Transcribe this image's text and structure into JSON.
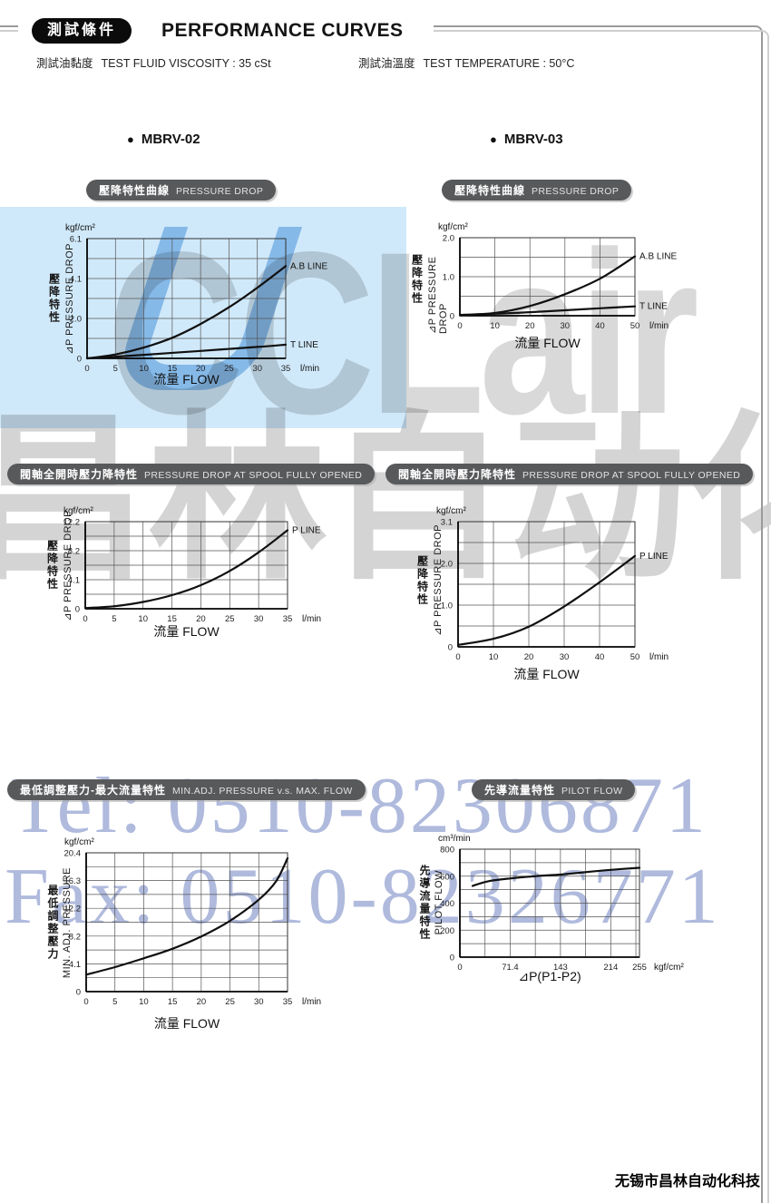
{
  "page": {
    "header": {
      "badge": "測試條件",
      "title": "PERFORMANCE CURVES"
    },
    "conditions": [
      {
        "zh": "測試油黏度",
        "en": "TEST FLUID VISCOSITY : 35 cSt"
      },
      {
        "zh": "測試油溫度",
        "en": "TEST TEMPERATURE : 50°C"
      }
    ],
    "models": [
      {
        "bullet": "●",
        "label": "MBRV-02"
      },
      {
        "bullet": "●",
        "label": "MBRV-03"
      }
    ],
    "watermarks": {
      "brand": "CCLair",
      "brand_zh": "昌林自动化",
      "tel": "Tel: 0510-82306871",
      "fax": "Fax: 0510-82326771"
    },
    "footer": "无锡市昌林自动化科技",
    "colors": {
      "pill_bg": "#58595b",
      "header_pill_bg": "#0b0b0b",
      "watermark_blue": "#7e90c8",
      "watermark_gray": "#bdbdbd",
      "lightblue_box": "#d0e9fa",
      "curve": "#101010"
    }
  },
  "chart_data": [
    {
      "type": "line",
      "model": "MBRV-02",
      "badge_zh": "壓降特性曲線",
      "badge_en": "PRESSURE DROP",
      "y_unit": "kgf/cm²",
      "x_unit": "l/min",
      "y_label_zh": "壓降特性",
      "y_label_en": "⊿P PRESSURE DROP",
      "x_title": "流量 FLOW",
      "x_range": [
        0,
        35
      ],
      "y_range": [
        0,
        6.1
      ],
      "x_gridlines": [
        0,
        5,
        10,
        15,
        20,
        25,
        30,
        35
      ],
      "y_gridlines": [
        0,
        1.017,
        2.033,
        3.05,
        4.067,
        5.083,
        6.1
      ],
      "x_ticks": [
        {
          "v": 0,
          "t": "0"
        },
        {
          "v": 5,
          "t": "5"
        },
        {
          "v": 10,
          "t": "10"
        },
        {
          "v": 15,
          "t": "15"
        },
        {
          "v": 20,
          "t": "20"
        },
        {
          "v": 25,
          "t": "25"
        },
        {
          "v": 30,
          "t": "30"
        },
        {
          "v": 35,
          "t": "35"
        }
      ],
      "y_ticks": [
        {
          "v": 0,
          "t": "0"
        },
        {
          "v": 2.033,
          "t": "2.0"
        },
        {
          "v": 4.067,
          "t": "4.1"
        },
        {
          "v": 6.1,
          "t": "6.1"
        }
      ],
      "series": [
        {
          "label": "A.B LINE",
          "points": [
            [
              0,
              0
            ],
            [
              5,
              0.2
            ],
            [
              10,
              0.55
            ],
            [
              15,
              1.05
            ],
            [
              20,
              1.75
            ],
            [
              25,
              2.6
            ],
            [
              30,
              3.6
            ],
            [
              35,
              4.7
            ]
          ]
        },
        {
          "label": "T LINE",
          "points": [
            [
              0,
              0
            ],
            [
              10,
              0.18
            ],
            [
              20,
              0.38
            ],
            [
              30,
              0.58
            ],
            [
              35,
              0.7
            ]
          ]
        }
      ]
    },
    {
      "type": "line",
      "model": "MBRV-03",
      "badge_zh": "壓降特性曲線",
      "badge_en": "PRESSURE DROP",
      "y_unit": "kgf/cm²",
      "x_unit": "l/min",
      "y_label_zh": "壓降特性",
      "y_label_en": "⊿P PRESSURE DROP",
      "x_title": "流量 FLOW",
      "x_range": [
        0,
        50
      ],
      "y_range": [
        0,
        2.0
      ],
      "x_gridlines": [
        0,
        10,
        20,
        30,
        40,
        50
      ],
      "y_gridlines": [
        0,
        0.5,
        1.0,
        1.5,
        2.0
      ],
      "x_ticks": [
        {
          "v": 0,
          "t": "0"
        },
        {
          "v": 10,
          "t": "10"
        },
        {
          "v": 20,
          "t": "20"
        },
        {
          "v": 30,
          "t": "30"
        },
        {
          "v": 40,
          "t": "40"
        },
        {
          "v": 50,
          "t": "50"
        }
      ],
      "y_ticks": [
        {
          "v": 0,
          "t": "0"
        },
        {
          "v": 1.0,
          "t": "1.0"
        },
        {
          "v": 2.0,
          "t": "2.0"
        }
      ],
      "series": [
        {
          "label": "A.B LINE",
          "points": [
            [
              0,
              0.02
            ],
            [
              10,
              0.07
            ],
            [
              20,
              0.25
            ],
            [
              30,
              0.55
            ],
            [
              40,
              0.95
            ],
            [
              50,
              1.52
            ]
          ]
        },
        {
          "label": "T LINE",
          "points": [
            [
              0,
              0.01
            ],
            [
              10,
              0.05
            ],
            [
              20,
              0.09
            ],
            [
              30,
              0.14
            ],
            [
              40,
              0.19
            ],
            [
              50,
              0.24
            ]
          ]
        }
      ]
    },
    {
      "type": "line",
      "model": "MBRV-02",
      "badge_zh": "閥軸全開時壓力降特性",
      "badge_en": "PRESSURE DROP  AT SPOOL FULLY OPENED",
      "y_unit": "kgf/cm²",
      "x_unit": "l/min",
      "y_label_zh": "壓降特性",
      "y_label_en": "⊿P PRESSURE DROP",
      "x_title": "流量 FLOW",
      "x_range": [
        0,
        35
      ],
      "y_range": [
        0,
        12.2
      ],
      "x_gridlines": [
        0,
        5,
        10,
        15,
        20,
        25,
        30,
        35
      ],
      "y_gridlines": [
        0,
        2.033,
        4.067,
        6.1,
        8.133,
        10.167,
        12.2
      ],
      "x_ticks": [
        {
          "v": 0,
          "t": "0"
        },
        {
          "v": 5,
          "t": "5"
        },
        {
          "v": 10,
          "t": "10"
        },
        {
          "v": 15,
          "t": "15"
        },
        {
          "v": 20,
          "t": "20"
        },
        {
          "v": 25,
          "t": "25"
        },
        {
          "v": 30,
          "t": "30"
        },
        {
          "v": 35,
          "t": "35"
        }
      ],
      "y_ticks": [
        {
          "v": 0,
          "t": "0"
        },
        {
          "v": 4.067,
          "t": "4.1"
        },
        {
          "v": 8.133,
          "t": "8.2"
        },
        {
          "v": 12.2,
          "t": "12.2"
        }
      ],
      "series": [
        {
          "label": "P LINE",
          "points": [
            [
              0,
              0.1
            ],
            [
              5,
              0.35
            ],
            [
              10,
              0.95
            ],
            [
              15,
              1.9
            ],
            [
              20,
              3.3
            ],
            [
              25,
              5.3
            ],
            [
              30,
              7.9
            ],
            [
              35,
              11.0
            ]
          ]
        }
      ]
    },
    {
      "type": "line",
      "model": "MBRV-03",
      "badge_zh": "閥軸全開時壓力降特性",
      "badge_en": "PRESSURE DROP  AT SPOOL FULLY OPENED",
      "y_unit": "kgf/cm²",
      "x_unit": "l/min",
      "y_label_zh": "壓降特性",
      "y_label_en": "⊿P PRESSURE DROP",
      "x_title": "流量 FLOW",
      "x_range": [
        0,
        50
      ],
      "y_range": [
        0,
        3.1
      ],
      "x_gridlines": [
        0,
        10,
        20,
        30,
        40,
        50
      ],
      "y_gridlines": [
        0,
        0.517,
        1.033,
        1.55,
        2.067,
        2.583,
        3.1
      ],
      "x_ticks": [
        {
          "v": 0,
          "t": "0"
        },
        {
          "v": 10,
          "t": "10"
        },
        {
          "v": 20,
          "t": "20"
        },
        {
          "v": 30,
          "t": "30"
        },
        {
          "v": 40,
          "t": "40"
        },
        {
          "v": 50,
          "t": "50"
        }
      ],
      "y_ticks": [
        {
          "v": 0,
          "t": "0"
        },
        {
          "v": 1.033,
          "t": "1.0"
        },
        {
          "v": 2.067,
          "t": "2.0"
        },
        {
          "v": 3.1,
          "t": "3.1"
        }
      ],
      "series": [
        {
          "label": "P LINE",
          "points": [
            [
              0,
              0.05
            ],
            [
              10,
              0.2
            ],
            [
              20,
              0.5
            ],
            [
              30,
              1.0
            ],
            [
              40,
              1.6
            ],
            [
              50,
              2.25
            ]
          ]
        }
      ]
    },
    {
      "type": "line",
      "model": "MBRV-02",
      "badge_zh": "最低調整壓力-最大流量特性",
      "badge_en": "MIN.ADJ. PRESSURE v.s. MAX. FLOW",
      "y_unit": "kgf/cm²",
      "x_unit": "l/min",
      "y_label_zh": "最低調整壓力",
      "y_label_en": "MIN. ADJ. PRESSURE",
      "x_title": "流量 FLOW",
      "x_range": [
        0,
        35
      ],
      "y_range": [
        0,
        20.4
      ],
      "x_gridlines": [
        0,
        5,
        10,
        15,
        20,
        25,
        30,
        35
      ],
      "y_gridlines": [
        0,
        2.04,
        4.08,
        6.12,
        8.16,
        10.2,
        12.24,
        14.28,
        16.32,
        18.36,
        20.4
      ],
      "x_ticks": [
        {
          "v": 0,
          "t": "0"
        },
        {
          "v": 5,
          "t": "5"
        },
        {
          "v": 10,
          "t": "10"
        },
        {
          "v": 15,
          "t": "15"
        },
        {
          "v": 20,
          "t": "20"
        },
        {
          "v": 25,
          "t": "25"
        },
        {
          "v": 30,
          "t": "30"
        },
        {
          "v": 35,
          "t": "35"
        }
      ],
      "y_ticks": [
        {
          "v": 0,
          "t": "0"
        },
        {
          "v": 4.08,
          "t": "4.1"
        },
        {
          "v": 8.16,
          "t": "8.2"
        },
        {
          "v": 12.24,
          "t": "12.2"
        },
        {
          "v": 16.32,
          "t": "16.3"
        },
        {
          "v": 20.4,
          "t": "20.4"
        }
      ],
      "series": [
        {
          "label": "",
          "points": [
            [
              0,
              2.5
            ],
            [
              5,
              3.6
            ],
            [
              10,
              4.9
            ],
            [
              15,
              6.3
            ],
            [
              20,
              8.1
            ],
            [
              25,
              10.4
            ],
            [
              30,
              13.5
            ],
            [
              33,
              16.2
            ],
            [
              35,
              19.6
            ]
          ]
        }
      ]
    },
    {
      "type": "line",
      "model": "MBRV-03",
      "badge_zh": "先導流量特性",
      "badge_en": "PILOT FLOW",
      "y_unit": "cm³/min",
      "x_unit": "kgf/cm²",
      "y_label_zh": "先導流量特性",
      "y_label_en": "PILOT FLOW",
      "x_title": "⊿P(P1-P2)",
      "x_range": [
        0,
        255
      ],
      "y_range": [
        0,
        800
      ],
      "x_gridlines": [
        0,
        35.7,
        71.4,
        107.1,
        142.8,
        178.5,
        214.2,
        249.9
      ],
      "y_gridlines": [
        0,
        100,
        200,
        300,
        400,
        500,
        600,
        700,
        800
      ],
      "x_ticks": [
        {
          "v": 0,
          "t": "0"
        },
        {
          "v": 71.4,
          "t": "71.4"
        },
        {
          "v": 142.8,
          "t": "143"
        },
        {
          "v": 214.2,
          "t": "214"
        },
        {
          "v": 255,
          "t": "255"
        }
      ],
      "y_ticks": [
        {
          "v": 0,
          "t": "0"
        },
        {
          "v": 200,
          "t": "200"
        },
        {
          "v": 400,
          "t": "400"
        },
        {
          "v": 600,
          "t": "600"
        },
        {
          "v": 800,
          "t": "800"
        }
      ],
      "series": [
        {
          "label": "",
          "points": [
            [
              18,
              528
            ],
            [
              40,
              562
            ],
            [
              71.4,
              583
            ],
            [
              107,
              600
            ],
            [
              142.8,
              612
            ],
            [
              178.5,
              630
            ],
            [
              214.2,
              647
            ],
            [
              255,
              662
            ]
          ]
        }
      ]
    }
  ]
}
